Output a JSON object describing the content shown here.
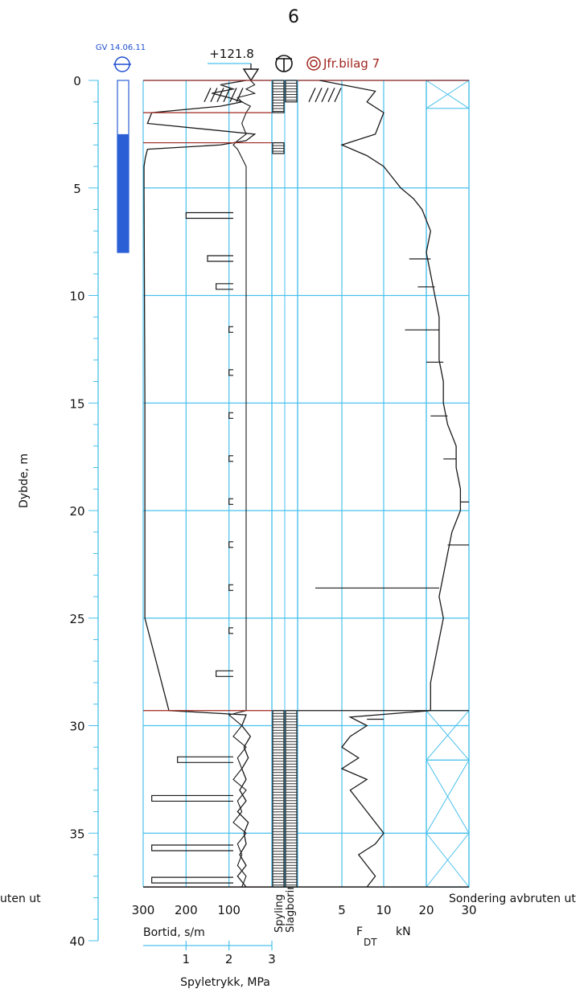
{
  "page_number": "6",
  "colors": {
    "grid": "#49c0ec",
    "trace": "#1a1a1a",
    "accent_red": "#a0261f",
    "water": "#2b5fd6",
    "water_label": "#1e4fd0"
  },
  "markers": {
    "groundwater_label": "GV 14.06.11",
    "groundwater_icon": "groundwater-symbol-icon",
    "elevation_label": "+121.8",
    "rotary_icon": "rotary-pressure-symbol-icon",
    "reference_label": "Jfr.bilag 7",
    "reference_icon": "sample-reference-icon"
  },
  "chart_data": {
    "type": "line",
    "title": "",
    "ylabel": "Dybde, m",
    "ylim": [
      0,
      40
    ],
    "y_ticks": [
      "0",
      "5",
      "10",
      "15",
      "20",
      "25",
      "30",
      "35",
      "40"
    ],
    "groundwater_depth_m": 2.5,
    "stop_depth_m": 37.5,
    "stop_text_left": "uten ut",
    "stop_text_right": "Sondering avbruten ut",
    "bortid_panel": {
      "xlabel": "Bortid, s/m",
      "xlim": [
        300,
        0
      ],
      "x_ticks": [
        "300",
        "200",
        "100"
      ],
      "secondary_xlabel": "Spyletrykk, MPa",
      "secondary_xlim": [
        0,
        3
      ],
      "secondary_ticks": [
        "1",
        "2",
        "3"
      ],
      "depth_m": [
        0,
        0.2,
        0.4,
        0.6,
        0.8,
        1.0,
        1.2,
        1.5,
        2.0,
        2.5,
        2.8,
        3.0,
        3.2,
        3.6,
        4.0,
        5.0,
        10.0,
        15.0,
        20.0,
        25.0,
        29.3,
        29.5,
        30.0,
        30.5,
        31.0,
        31.5,
        32.0,
        32.5,
        33.0,
        33.5,
        34.0,
        34.5,
        35.0,
        35.5,
        36.0,
        36.5,
        37.0,
        37.5
      ],
      "bortid_s_per_m": [
        60,
        120,
        90,
        140,
        100,
        70,
        120,
        280,
        290,
        40,
        60,
        120,
        290,
        295,
        298,
        298,
        297,
        296,
        296,
        296,
        240,
        60,
        70,
        50,
        65,
        55,
        70,
        60,
        75,
        60,
        80,
        55,
        65,
        60,
        75,
        60,
        80,
        60
      ],
      "spyletrykk_mpa": [
        2.5,
        2.6,
        2.4,
        2.6,
        2.2,
        2.3,
        2.5,
        2.4,
        2.3,
        2.4,
        2.2,
        2.1,
        2.2,
        2.3,
        2.4,
        2.4,
        2.4,
        2.4,
        2.4,
        2.4,
        2.4,
        2.0,
        2.3,
        2.1,
        2.4,
        2.2,
        2.3,
        2.1,
        2.4,
        2.2,
        2.3,
        2.1,
        2.4,
        2.2,
        2.3,
        2.2,
        2.4,
        2.3
      ]
    },
    "spikes": [
      {
        "depth_m": 6.3,
        "bortid": 200
      },
      {
        "depth_m": 8.3,
        "bortid": 150
      },
      {
        "depth_m": 9.6,
        "bortid": 130
      },
      {
        "depth_m": 11.6,
        "bortid": 100
      },
      {
        "depth_m": 13.6,
        "bortid": 100
      },
      {
        "depth_m": 15.6,
        "bortid": 100
      },
      {
        "depth_m": 17.6,
        "bortid": 100
      },
      {
        "depth_m": 19.6,
        "bortid": 100
      },
      {
        "depth_m": 21.6,
        "bortid": 100
      },
      {
        "depth_m": 23.6,
        "bortid": 100
      },
      {
        "depth_m": 25.6,
        "bortid": 100
      },
      {
        "depth_m": 27.6,
        "bortid": 130
      },
      {
        "depth_m": 31.6,
        "bortid": 220
      },
      {
        "depth_m": 33.4,
        "bortid": 280
      },
      {
        "depth_m": 35.7,
        "bortid": 280
      },
      {
        "depth_m": 37.2,
        "bortid": 280
      }
    ],
    "method_column": {
      "labels": [
        "Spyling",
        "Slagboring"
      ],
      "spyling_intervals_m": [
        [
          0,
          1.5
        ],
        [
          2.9,
          3.4
        ],
        [
          29.3,
          37.5
        ]
      ],
      "slagboring_intervals_m": [
        [
          0,
          1.0
        ],
        [
          29.3,
          37.5
        ]
      ]
    },
    "fdt_panel": {
      "xlabel": "F",
      "xlabel_sub": "DT",
      "unit": "kN",
      "x_ticks": [
        "5",
        "10",
        "20",
        "30"
      ],
      "depth_m": [
        0,
        0.5,
        1.0,
        1.5,
        2.0,
        2.5,
        3.0,
        3.5,
        4.0,
        4.5,
        5.0,
        5.5,
        6.0,
        7.0,
        8.0,
        9.0,
        10.0,
        11.0,
        12.0,
        13.0,
        14.0,
        15.0,
        16.0,
        17.0,
        18.0,
        19.0,
        20.0,
        21.0,
        22.0,
        23.0,
        24.0,
        25.0,
        26.0,
        27.0,
        28.0,
        29.0,
        29.3,
        29.6,
        30.0,
        30.5,
        31.0,
        31.5,
        32.0,
        32.5,
        33.0,
        33.5,
        34.0,
        34.5,
        35.0,
        35.5,
        36.0,
        36.5,
        37.0,
        37.5
      ],
      "fdt_kn": [
        2.5,
        9,
        8,
        10,
        9.5,
        9,
        5,
        8,
        10,
        12,
        14,
        17,
        19,
        21,
        20,
        21,
        22,
        23,
        23,
        23,
        24,
        24,
        25,
        27,
        27,
        28,
        28,
        26,
        25,
        24,
        23,
        24,
        23,
        22,
        21,
        21,
        21,
        6,
        8,
        6,
        5,
        7,
        5,
        8,
        6,
        7,
        8,
        9,
        10,
        9,
        7,
        8,
        9,
        8
      ],
      "spikes_kn": [
        {
          "depth_m": 8.3,
          "fdt": 16
        },
        {
          "depth_m": 9.6,
          "fdt": 18
        },
        {
          "depth_m": 11.6,
          "fdt": 15
        },
        {
          "depth_m": 13.1,
          "fdt": 20
        },
        {
          "depth_m": 15.6,
          "fdt": 21
        },
        {
          "depth_m": 17.6,
          "fdt": 24
        },
        {
          "depth_m": 19.6,
          "fdt": 32
        },
        {
          "depth_m": 21.6,
          "fdt": 32
        },
        {
          "depth_m": 23.6,
          "fdt": 2
        },
        {
          "depth_m": 29.7,
          "fdt": 10
        }
      ]
    },
    "hatch_panel": {
      "cross_intervals_m": [
        [
          0,
          1.3
        ],
        [
          29.3,
          31.6
        ],
        [
          31.6,
          35.0
        ],
        [
          35.0,
          37.5
        ]
      ]
    }
  }
}
